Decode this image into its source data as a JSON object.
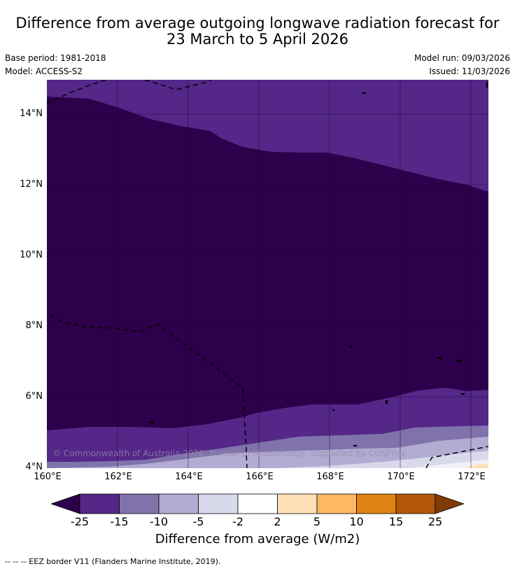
{
  "title": {
    "line1": "Difference from average outgoing longwave radiation forecast for",
    "line2": "23 March to 5 April 2026"
  },
  "meta": {
    "base_period": "Base period: 1981-2018",
    "model": "Model: ACCESS-S2",
    "model_run": "Model run: 09/03/2026",
    "issued": "Issued: 11/03/2026"
  },
  "map": {
    "lat_labels": [
      "14°N",
      "12°N",
      "10°N",
      "8°N",
      "6°N",
      "4°N"
    ],
    "lon_labels": [
      "160°E",
      "162°E",
      "164°E",
      "166°E",
      "168°E",
      "170°E",
      "172°E"
    ],
    "copyright": "© Commonwealth of Australia 2026, Bureau of Meteorology, supported by COSPPac"
  },
  "colorbar": {
    "ticks": [
      "-25",
      "-15",
      "-10",
      "-5",
      "-2",
      "2",
      "5",
      "10",
      "15",
      "25"
    ],
    "colors": [
      "#2d004b",
      "#542788",
      "#8073ac",
      "#b2abd2",
      "#d8daeb",
      "#ffffff",
      "#fee0b6",
      "#fdb863",
      "#e08214",
      "#b35806",
      "#7f3b08"
    ],
    "label": "Difference from average (W/m2)"
  },
  "legend": {
    "eez": "--  --  -- EEZ border V11 (Flanders Marine Institute, 2019)."
  }
}
